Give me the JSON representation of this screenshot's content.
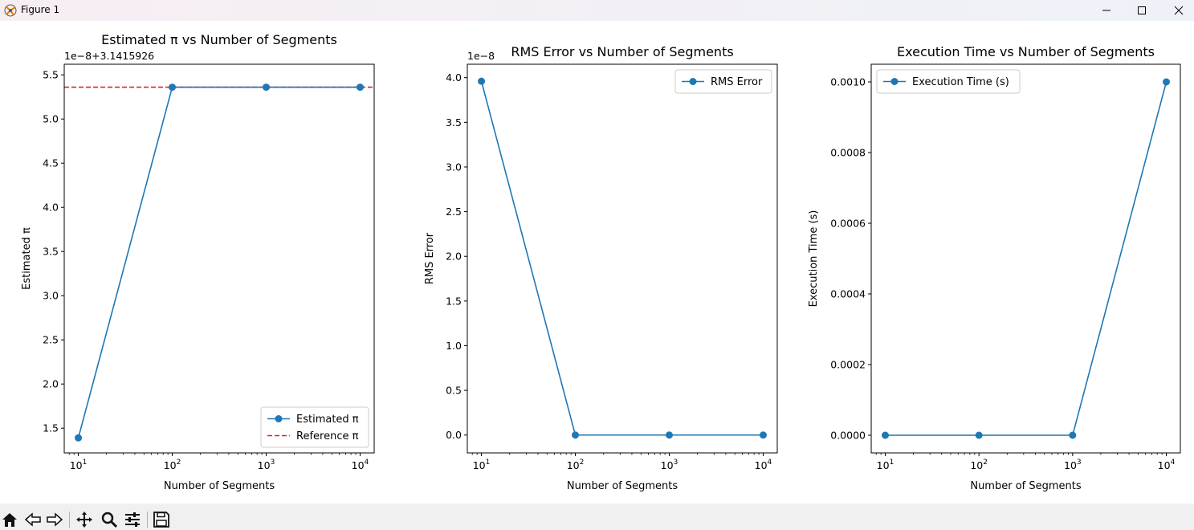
{
  "window": {
    "title": "Figure 1"
  },
  "toolbar": {
    "icons": [
      "home-icon",
      "back-arrow-icon",
      "forward-arrow-icon",
      "pan-move-icon",
      "zoom-magnifier-icon",
      "configure-subplots-icon",
      "save-floppy-icon"
    ]
  },
  "colors": {
    "series": "#1f77b4",
    "reference": "#d62728"
  },
  "chart_data": [
    {
      "type": "line",
      "title": "Estimated π vs Number of Segments",
      "xlabel": "Number of Segments",
      "ylabel": "Estimated π",
      "xscale": "log",
      "x": [
        10,
        100,
        1000,
        10000
      ],
      "xticks": [
        10,
        100,
        1000,
        10000
      ],
      "xticklabels": [
        "10",
        "10",
        "10",
        "10"
      ],
      "xtickexps": [
        "1",
        "2",
        "3",
        "4"
      ],
      "offset_text": "1e−8+3.1415926",
      "ylim": [
        1.22,
        5.62
      ],
      "yticks": [
        1.5,
        2.0,
        2.5,
        3.0,
        3.5,
        4.0,
        4.5,
        5.0,
        5.5
      ],
      "yticklabels": [
        "1.5",
        "2.0",
        "2.5",
        "3.0",
        "3.5",
        "4.0",
        "4.5",
        "5.0",
        "5.5"
      ],
      "series": [
        {
          "name": "Estimated π",
          "values": [
            1.39,
            5.36,
            5.36,
            5.36
          ],
          "style": "line-marker",
          "color": "#1f77b4"
        }
      ],
      "reference": {
        "name": "Reference π",
        "value": 5.36,
        "color": "#d62728",
        "style": "dashed"
      },
      "legend": "lower-right",
      "grid": false
    },
    {
      "type": "line",
      "title": "RMS Error vs Number of Segments",
      "xlabel": "Number of Segments",
      "ylabel": "RMS Error",
      "xscale": "log",
      "x": [
        10,
        100,
        1000,
        10000
      ],
      "xticks": [
        10,
        100,
        1000,
        10000
      ],
      "xticklabels": [
        "10",
        "10",
        "10",
        "10"
      ],
      "xtickexps": [
        "1",
        "2",
        "3",
        "4"
      ],
      "offset_text": "1e−8",
      "ylim": [
        -0.2,
        4.15
      ],
      "yticks": [
        0.0,
        0.5,
        1.0,
        1.5,
        2.0,
        2.5,
        3.0,
        3.5,
        4.0
      ],
      "yticklabels": [
        "0.0",
        "0.5",
        "1.0",
        "1.5",
        "2.0",
        "2.5",
        "3.0",
        "3.5",
        "4.0"
      ],
      "series": [
        {
          "name": "RMS Error",
          "values": [
            3.96,
            0.0,
            0.0,
            0.0
          ],
          "style": "line-marker",
          "color": "#1f77b4"
        }
      ],
      "legend": "upper-right",
      "grid": false
    },
    {
      "type": "line",
      "title": "Execution Time vs Number of Segments",
      "xlabel": "Number of Segments",
      "ylabel": "Execution Time (s)",
      "xscale": "log",
      "x": [
        10,
        100,
        1000,
        10000
      ],
      "xticks": [
        10,
        100,
        1000,
        10000
      ],
      "xticklabels": [
        "10",
        "10",
        "10",
        "10"
      ],
      "xtickexps": [
        "1",
        "2",
        "3",
        "4"
      ],
      "offset_text": "",
      "ylim": [
        -5e-05,
        0.00105
      ],
      "yticks": [
        0.0,
        0.0002,
        0.0004,
        0.0006,
        0.0008,
        0.001
      ],
      "yticklabels": [
        "0.0000",
        "0.0002",
        "0.0004",
        "0.0006",
        "0.0008",
        "0.0010"
      ],
      "series": [
        {
          "name": "Execution Time (s)",
          "values": [
            0.0,
            0.0,
            0.0,
            0.001
          ],
          "style": "line-marker",
          "color": "#1f77b4"
        }
      ],
      "legend": "upper-left",
      "grid": false
    }
  ]
}
